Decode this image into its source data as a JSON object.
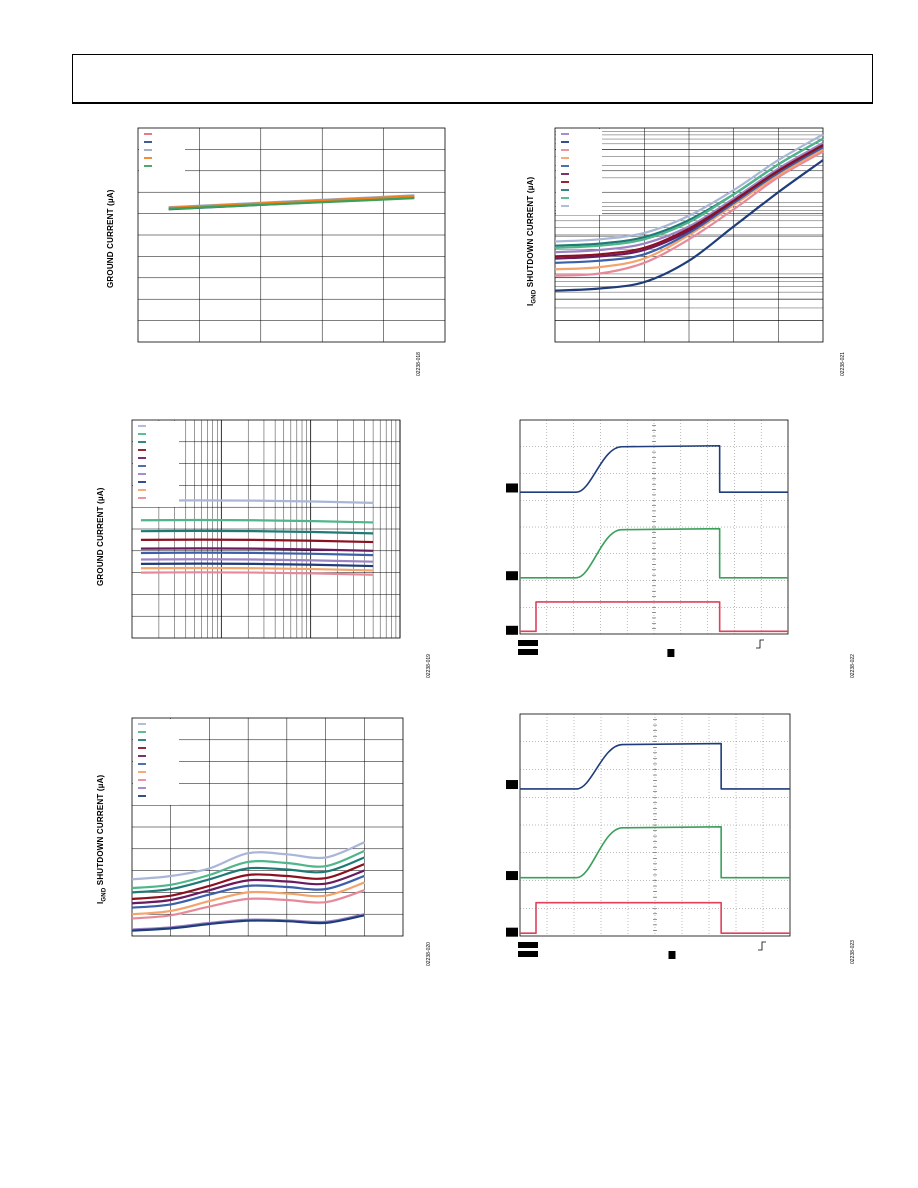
{
  "header": {},
  "figures": [
    {
      "id": "fig18",
      "ylabel_pre": "GROUND CURRENT (",
      "ylabel_unit": "µA",
      "ylabel_post": ")",
      "figure_id": "02238-018",
      "chart_data": {
        "type": "line",
        "grid": "on",
        "legend": "top-left",
        "xlim": [
          0,
          100
        ],
        "ylim": [
          0,
          10
        ],
        "x_divisions": 5,
        "y_divisions": 10,
        "series": [
          {
            "color": "#e46a7a",
            "x": [
              10,
              90
            ],
            "y": [
              6.25,
              6.8
            ]
          },
          {
            "color": "#2b4b8c",
            "x": [
              10,
              90
            ],
            "y": [
              6.2,
              6.75
            ]
          },
          {
            "color": "#9aa7c7",
            "x": [
              10,
              90
            ],
            "y": [
              6.3,
              6.85
            ]
          },
          {
            "color": "#f07f1f",
            "x": [
              10,
              90
            ],
            "y": [
              6.27,
              6.82
            ]
          },
          {
            "color": "#3aa05a",
            "x": [
              10,
              90
            ],
            "y": [
              6.22,
              6.72
            ]
          }
        ]
      }
    },
    {
      "id": "fig21",
      "ylabel_pre": "I",
      "ylabel_sub": "GND",
      "ylabel_post": " SHUTDOWN CURRENT (µA)",
      "figure_id": "02238-021",
      "chart_data": {
        "type": "line",
        "grid": "on",
        "legend": "top-left",
        "xlim": [
          0,
          6
        ],
        "ylim": [
          0,
          10
        ],
        "x_divisions": 6,
        "y_divisions": 10,
        "series": [
          {
            "color": "#9b82c4",
            "x": [
              0,
              1,
              2,
              3,
              4,
              5,
              6
            ],
            "y": [
              4.2,
              4.3,
              4.6,
              5.4,
              6.7,
              8.1,
              9.3
            ]
          },
          {
            "color": "#1f3d7a",
            "x": [
              0,
              1,
              2,
              3,
              4,
              5,
              6
            ],
            "y": [
              2.4,
              2.5,
              2.8,
              3.8,
              5.4,
              7.0,
              8.5
            ]
          },
          {
            "color": "#e8899a",
            "x": [
              0,
              1,
              2,
              3,
              4,
              5,
              6
            ],
            "y": [
              3.1,
              3.2,
              3.7,
              4.8,
              6.2,
              7.7,
              8.9
            ]
          },
          {
            "color": "#f3a36b",
            "x": [
              0,
              1,
              2,
              3,
              4,
              5,
              6
            ],
            "y": [
              3.4,
              3.5,
              3.9,
              5.0,
              6.4,
              7.8,
              9.0
            ]
          },
          {
            "color": "#3b5fa8",
            "x": [
              0,
              1,
              2,
              3,
              4,
              5,
              6
            ],
            "y": [
              3.7,
              3.8,
              4.1,
              5.1,
              6.5,
              7.9,
              9.1
            ]
          },
          {
            "color": "#6a1b5e",
            "x": [
              0,
              1,
              2,
              3,
              4,
              5,
              6
            ],
            "y": [
              3.9,
              4.0,
              4.3,
              5.2,
              6.6,
              8.0,
              9.2
            ]
          },
          {
            "color": "#8b1020",
            "x": [
              0,
              1,
              2,
              3,
              4,
              5,
              6
            ],
            "y": [
              4.0,
              4.1,
              4.4,
              5.3,
              6.6,
              8.0,
              9.2
            ]
          },
          {
            "color": "#1f7a75",
            "x": [
              0,
              1,
              2,
              3,
              4,
              5,
              6
            ],
            "y": [
              4.5,
              4.6,
              4.9,
              5.7,
              6.9,
              8.3,
              9.5
            ]
          },
          {
            "color": "#4fb58a",
            "x": [
              0,
              1,
              2,
              3,
              4,
              5,
              6
            ],
            "y": [
              4.4,
              4.5,
              4.8,
              5.6,
              6.9,
              8.3,
              9.5
            ]
          },
          {
            "color": "#a9b6d6",
            "x": [
              0,
              1,
              2,
              3,
              4,
              5,
              6
            ],
            "y": [
              4.7,
              4.8,
              5.1,
              5.9,
              7.1,
              8.5,
              9.7
            ]
          }
        ]
      }
    },
    {
      "id": "fig19",
      "ylabel_pre": "GROUND CURRENT (",
      "ylabel_unit": "µA",
      "ylabel_post": ")",
      "figure_id": "02238-019",
      "chart_data": {
        "type": "line",
        "grid": "on",
        "x_scale": "log",
        "legend": "top-left",
        "xlim": [
          0,
          3
        ],
        "ylim": [
          0,
          10
        ],
        "y_divisions": 10,
        "series": [
          {
            "color": "#a9b6d6",
            "x": [
              0.1,
              2.7
            ],
            "y": [
              6.3,
              6.2
            ]
          },
          {
            "color": "#4fb58a",
            "x": [
              0.1,
              2.7
            ],
            "y": [
              5.4,
              5.3
            ]
          },
          {
            "color": "#1f7a75",
            "x": [
              0.1,
              2.7
            ],
            "y": [
              4.9,
              4.8
            ]
          },
          {
            "color": "#8b1020",
            "x": [
              0.1,
              2.7
            ],
            "y": [
              4.5,
              4.4
            ]
          },
          {
            "color": "#6a1b5e",
            "x": [
              0.1,
              2.7
            ],
            "y": [
              4.1,
              4.0
            ]
          },
          {
            "color": "#3b5fa8",
            "x": [
              0.1,
              2.7
            ],
            "y": [
              3.9,
              3.8
            ]
          },
          {
            "color": "#9b82c4",
            "x": [
              0.1,
              2.7
            ],
            "y": [
              3.6,
              3.5
            ]
          },
          {
            "color": "#1f3d7a",
            "x": [
              0.1,
              2.7
            ],
            "y": [
              3.4,
              3.3
            ]
          },
          {
            "color": "#f3a36b",
            "x": [
              0.1,
              2.7
            ],
            "y": [
              3.2,
              3.1
            ]
          },
          {
            "color": "#e8899a",
            "x": [
              0.1,
              2.7
            ],
            "y": [
              3.0,
              2.9
            ]
          }
        ]
      }
    },
    {
      "id": "fig22",
      "figure_id": "02238-022",
      "chart_data": {
        "type": "line",
        "grid": "on",
        "xlim": [
          0,
          10
        ],
        "ylim": [
          0,
          8
        ],
        "x_divisions": 10,
        "y_divisions": 8,
        "series": [
          {
            "color": "#1f3d7a",
            "x": [
              0,
              2,
              3,
              4,
              7,
              10
            ],
            "y": [
              5.3,
              5.3,
              6.3,
              7.0,
              7.05,
              5.3
            ]
          },
          {
            "color": "#3aa05a",
            "x": [
              0,
              2,
              3,
              4,
              7,
              10
            ],
            "y": [
              2.1,
              2.1,
              3.3,
              3.9,
              3.95,
              2.1
            ]
          },
          {
            "color": "#e0405a",
            "x": [
              0,
              1,
              6
            ],
            "y": [
              0.1,
              1.2,
              0.1
            ]
          }
        ]
      }
    },
    {
      "id": "fig20",
      "ylabel_pre": "I",
      "ylabel_sub": "GND",
      "ylabel_post": " SHUTDOWN CURRENT (µA)",
      "figure_id": "02238-020",
      "chart_data": {
        "type": "line",
        "grid": "on",
        "legend": "top-left",
        "xlim": [
          0,
          7
        ],
        "ylim": [
          0,
          10
        ],
        "x_divisions": 7,
        "y_divisions": 10,
        "series": [
          {
            "color": "#a9b6d6",
            "x": [
              0,
              1,
              2,
              3,
              4,
              5,
              6
            ],
            "y": [
              2.6,
              2.75,
              3.1,
              3.8,
              3.75,
              3.6,
              4.3
            ]
          },
          {
            "color": "#4fb58a",
            "x": [
              0,
              1,
              2,
              3,
              4,
              5,
              6
            ],
            "y": [
              2.2,
              2.35,
              2.8,
              3.4,
              3.35,
              3.2,
              3.9
            ]
          },
          {
            "color": "#1f7a75",
            "x": [
              0,
              1,
              2,
              3,
              4,
              5,
              6
            ],
            "y": [
              2.0,
              2.15,
              2.6,
              3.1,
              3.05,
              2.95,
              3.6
            ]
          },
          {
            "color": "#8b1020",
            "x": [
              0,
              1,
              2,
              3,
              4,
              5,
              6
            ],
            "y": [
              1.7,
              1.85,
              2.3,
              2.8,
              2.75,
              2.65,
              3.3
            ]
          },
          {
            "color": "#6a1b5e",
            "x": [
              0,
              1,
              2,
              3,
              4,
              5,
              6
            ],
            "y": [
              1.5,
              1.65,
              2.1,
              2.55,
              2.5,
              2.4,
              3.0
            ]
          },
          {
            "color": "#3b5fa8",
            "x": [
              0,
              1,
              2,
              3,
              4,
              5,
              6
            ],
            "y": [
              1.3,
              1.45,
              1.9,
              2.3,
              2.25,
              2.15,
              2.75
            ]
          },
          {
            "color": "#f3a36b",
            "x": [
              0,
              1,
              2,
              3,
              4,
              5,
              6
            ],
            "y": [
              1.0,
              1.15,
              1.6,
              2.0,
              1.95,
              1.85,
              2.45
            ]
          },
          {
            "color": "#e8899a",
            "x": [
              0,
              1,
              2,
              3,
              4,
              5,
              6
            ],
            "y": [
              0.8,
              0.95,
              1.35,
              1.7,
              1.65,
              1.55,
              2.1
            ]
          },
          {
            "color": "#9b82c4",
            "x": [
              0,
              1,
              2,
              3,
              4,
              5,
              6
            ],
            "y": [
              0.3,
              0.4,
              0.6,
              0.75,
              0.72,
              0.65,
              1.0
            ]
          },
          {
            "color": "#1f3d7a",
            "x": [
              0,
              1,
              2,
              3,
              4,
              5,
              6
            ],
            "y": [
              0.25,
              0.35,
              0.55,
              0.7,
              0.68,
              0.6,
              0.95
            ]
          }
        ]
      }
    },
    {
      "id": "fig23",
      "figure_id": "02238-023",
      "chart_data": {
        "type": "line",
        "grid": "on",
        "xlim": [
          0,
          10
        ],
        "ylim": [
          0,
          8
        ],
        "x_divisions": 10,
        "y_divisions": 8,
        "series": [
          {
            "color": "#1f3d7a",
            "x": [
              0,
              2,
              3,
              4,
              7,
              10
            ],
            "y": [
              5.3,
              5.3,
              6.3,
              6.9,
              6.95,
              5.3
            ]
          },
          {
            "color": "#3aa05a",
            "x": [
              0,
              2,
              3,
              4,
              7,
              10
            ],
            "y": [
              2.1,
              2.1,
              3.3,
              3.9,
              3.95,
              2.1
            ]
          },
          {
            "color": "#e0405a",
            "x": [
              0,
              1,
              6
            ],
            "y": [
              0.1,
              1.2,
              0.1
            ]
          }
        ]
      }
    }
  ]
}
